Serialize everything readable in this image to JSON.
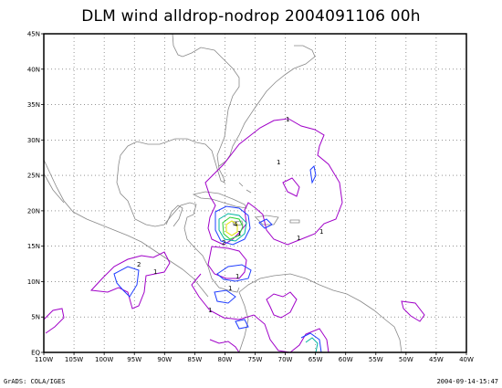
{
  "title": "DLM wind alldrop-nodrop 2004091106 00h",
  "footer": {
    "left": "GrADS: COLA/IGES",
    "right": "2004-09-14-15:47"
  },
  "map": {
    "lon_min": -110,
    "lon_max": -40,
    "lat_min": 0,
    "lat_max": 45,
    "x_ticks": [
      "110W",
      "105W",
      "100W",
      "95W",
      "90W",
      "85W",
      "80W",
      "75W",
      "70W",
      "65W",
      "60W",
      "55W",
      "50W",
      "45W",
      "40W"
    ],
    "y_ticks": [
      "EQ",
      "5N",
      "10N",
      "15N",
      "20N",
      "25N",
      "30N",
      "35N",
      "40N",
      "45N"
    ],
    "grid": "dotted",
    "contour_labels": [
      "1",
      "1",
      "1",
      "1",
      "1",
      "1",
      "1",
      "1",
      "1",
      "2",
      "2",
      "4"
    ],
    "colors": {
      "coast": "#888888",
      "contour_1": "#a000c8",
      "contour_2": "#1e3cff",
      "contour_3": "#00b4a0",
      "contour_4": "#30d030",
      "contour_5": "#e0e000",
      "frame": "#000000"
    }
  }
}
